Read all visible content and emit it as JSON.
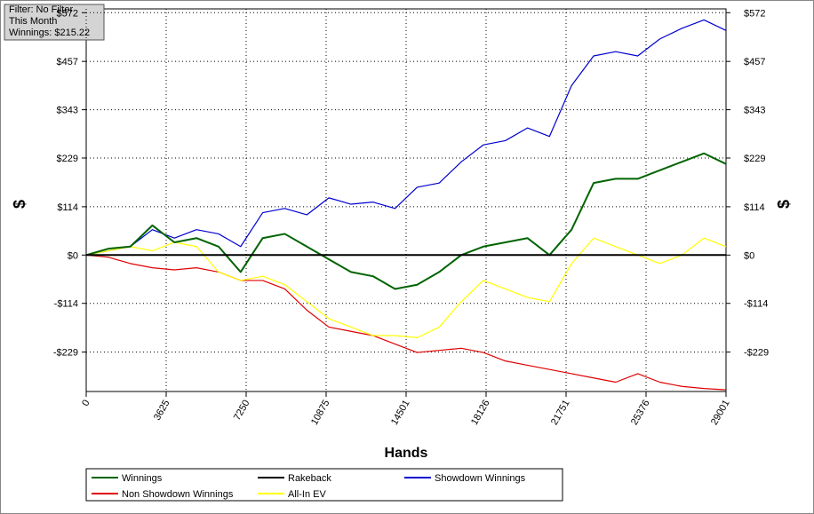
{
  "chart_data": {
    "type": "line",
    "annotations": [
      "Filter: No Filter",
      "This Month",
      "Winnings: $215.22"
    ],
    "xlabel": "Hands",
    "ylabel": "$",
    "y2label": "$",
    "x": [
      0,
      1000,
      2000,
      3000,
      4000,
      5000,
      6000,
      7000,
      8000,
      9000,
      10000,
      11000,
      12000,
      13000,
      14000,
      15000,
      16000,
      17000,
      18000,
      19000,
      20000,
      21000,
      22000,
      23000,
      24000,
      25000,
      26000,
      27000,
      28000,
      29000
    ],
    "series": [
      {
        "name": "Winnings",
        "color": "#006400",
        "values": [
          0,
          15,
          20,
          70,
          30,
          40,
          20,
          -40,
          40,
          50,
          20,
          -10,
          -40,
          -50,
          -80,
          -70,
          -40,
          0,
          20,
          30,
          40,
          0,
          60,
          170,
          180,
          180,
          200,
          220,
          240,
          215
        ]
      },
      {
        "name": "Rakeback",
        "color": "#000000",
        "values": [
          0,
          0,
          0,
          0,
          0,
          0,
          0,
          0,
          0,
          0,
          0,
          0,
          0,
          0,
          0,
          0,
          0,
          0,
          0,
          0,
          0,
          0,
          0,
          0,
          0,
          0,
          0,
          0,
          0,
          0
        ]
      },
      {
        "name": "Showdown Winnings",
        "color": "#0000d0",
        "values": [
          0,
          10,
          20,
          60,
          40,
          60,
          50,
          20,
          100,
          110,
          95,
          135,
          120,
          125,
          110,
          160,
          170,
          220,
          260,
          270,
          300,
          280,
          400,
          470,
          480,
          470,
          510,
          535,
          555,
          530
        ]
      },
      {
        "name": "Non Showdown Winnings",
        "color": "#e00000",
        "values": [
          0,
          -5,
          -20,
          -30,
          -35,
          -30,
          -40,
          -60,
          -60,
          -80,
          -130,
          -170,
          -180,
          -190,
          -210,
          -230,
          -225,
          -220,
          -230,
          -250,
          -260,
          -270,
          -280,
          -290,
          -300,
          -280,
          -300,
          -310,
          -315,
          -318
        ]
      },
      {
        "name": "All-In EV",
        "color": "#ffff00",
        "values": [
          0,
          10,
          20,
          10,
          30,
          20,
          -40,
          -60,
          -50,
          -70,
          -110,
          -150,
          -170,
          -190,
          -190,
          -195,
          -170,
          -110,
          -60,
          -80,
          -100,
          -110,
          -20,
          40,
          20,
          0,
          -20,
          0,
          40,
          20
        ]
      }
    ],
    "xlim": [
      0,
      29001
    ],
    "xticks": [
      0,
      3625,
      7250,
      10875,
      14501,
      18126,
      21751,
      25376,
      29001
    ],
    "ylim": [
      -322,
      581
    ],
    "yticks": [
      {
        "value": -229,
        "label": "-$229"
      },
      {
        "value": -114,
        "label": "-$114"
      },
      {
        "value": 0,
        "label": "$0"
      },
      {
        "value": 114,
        "label": "$114"
      },
      {
        "value": 229,
        "label": "$229"
      },
      {
        "value": 343,
        "label": "$343"
      },
      {
        "value": 457,
        "label": "$457"
      },
      {
        "value": 572,
        "label": "$572"
      }
    ],
    "y2lim": [
      -322,
      581
    ],
    "y2ticks": [
      {
        "value": -229,
        "label": "-$229"
      },
      {
        "value": -114,
        "label": "-$114"
      },
      {
        "value": 0,
        "label": "$0"
      },
      {
        "value": 114,
        "label": "$114"
      },
      {
        "value": 229,
        "label": "$229"
      },
      {
        "value": 343,
        "label": "$343"
      },
      {
        "value": 457,
        "label": "$457"
      },
      {
        "value": 572,
        "label": "$572"
      }
    ],
    "grid": true
  }
}
